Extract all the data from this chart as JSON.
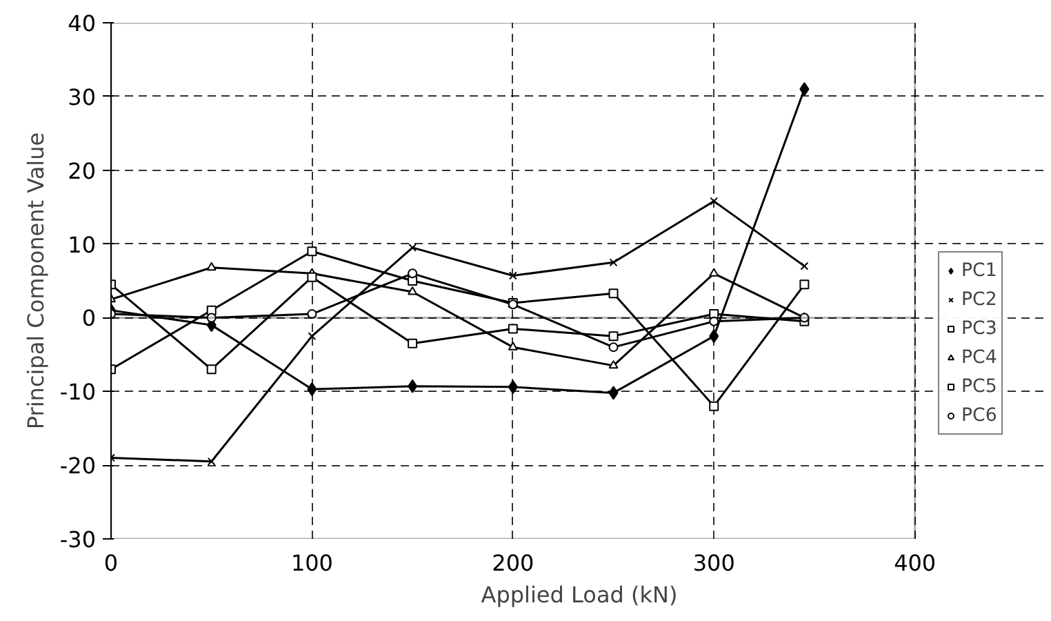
{
  "chart_data": {
    "type": "line",
    "xlabel": "Applied Load (kN)",
    "ylabel": "Principal Component Value",
    "x": [
      0,
      50,
      100,
      150,
      200,
      250,
      300,
      345
    ],
    "xlim": [
      0,
      400
    ],
    "xticks": [
      0,
      100,
      200,
      300,
      400
    ],
    "ylim": [
      -30,
      40
    ],
    "yticks": [
      -30,
      -20,
      -10,
      0,
      10,
      20,
      30,
      40
    ],
    "grid": true,
    "legend": "right",
    "ref_lines": [
      {
        "axis": "y",
        "value": 0,
        "label": null,
        "color": "#000000",
        "line_style": "solid"
      }
    ],
    "series": [
      {
        "name": "PC1",
        "color": "#000000",
        "marker": "diamond",
        "values": [
          1,
          -1,
          -9.7,
          -9.3,
          -9.4,
          -10.2,
          -2.5,
          31
        ]
      },
      {
        "name": "PC2",
        "color": "#000000",
        "marker": "cross",
        "values": [
          -19,
          -19.5,
          -2.5,
          9.5,
          5.7,
          7.5,
          15.8,
          7
        ]
      },
      {
        "name": "PC3",
        "color": "#000000",
        "marker": "square",
        "values": [
          -7,
          1,
          9,
          5,
          2,
          3.3,
          -12,
          4.5
        ]
      },
      {
        "name": "PC4",
        "color": "#000000",
        "marker": "triangle",
        "values": [
          2.5,
          6.8,
          6,
          3.5,
          -4,
          -6.5,
          6,
          0
        ]
      },
      {
        "name": "PC5",
        "color": "#000000",
        "marker": "square",
        "values": [
          4.5,
          -7,
          5.5,
          -3.5,
          -1.5,
          -2.5,
          0.5,
          -0.5
        ]
      },
      {
        "name": "PC6",
        "color": "#000000",
        "marker": "circle",
        "values": [
          0.5,
          0,
          0.5,
          6,
          1.8,
          -4,
          -0.5,
          0
        ]
      }
    ]
  }
}
